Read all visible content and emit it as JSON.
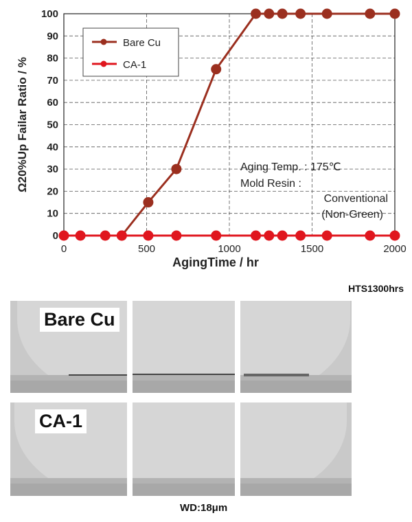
{
  "chart_data": {
    "type": "line",
    "xlabel": "AgingTime / hr",
    "ylabel": "Ω20%Up Failar Ratio / %",
    "xlim": [
      0,
      2000
    ],
    "ylim": [
      0,
      100
    ],
    "xticks": [
      "0",
      "500",
      "1000",
      "1500",
      "2000"
    ],
    "yticks": [
      "0",
      "10",
      "20",
      "30",
      "40",
      "50",
      "60",
      "70",
      "80",
      "90",
      "100"
    ],
    "grid": true,
    "legend_position": "top-left",
    "series": [
      {
        "name": "Bare Cu",
        "color": "#9b2f1f",
        "x": [
          350,
          510,
          680,
          920,
          1160,
          1240,
          1320,
          1430,
          1590,
          1850,
          2000
        ],
        "y": [
          0,
          15,
          30,
          75,
          100,
          100,
          100,
          100,
          100,
          100,
          100
        ]
      },
      {
        "name": "CA-1",
        "color": "#e0161e",
        "x": [
          0,
          100,
          250,
          350,
          510,
          680,
          920,
          1160,
          1240,
          1320,
          1430,
          1590,
          1850,
          2000
        ],
        "y": [
          0,
          0,
          0,
          0,
          0,
          0,
          0,
          0,
          0,
          0,
          0,
          0,
          0,
          0
        ]
      }
    ],
    "annotations": [
      "Aging Temp. : 175℃",
      "Mold Resin :",
      "Conventional",
      "(Non-Green)"
    ]
  },
  "micrographs": {
    "condition": "HTS1300hrs",
    "rows": [
      "Bare Cu",
      "CA-1"
    ],
    "scale_label": "WD:18μm"
  }
}
